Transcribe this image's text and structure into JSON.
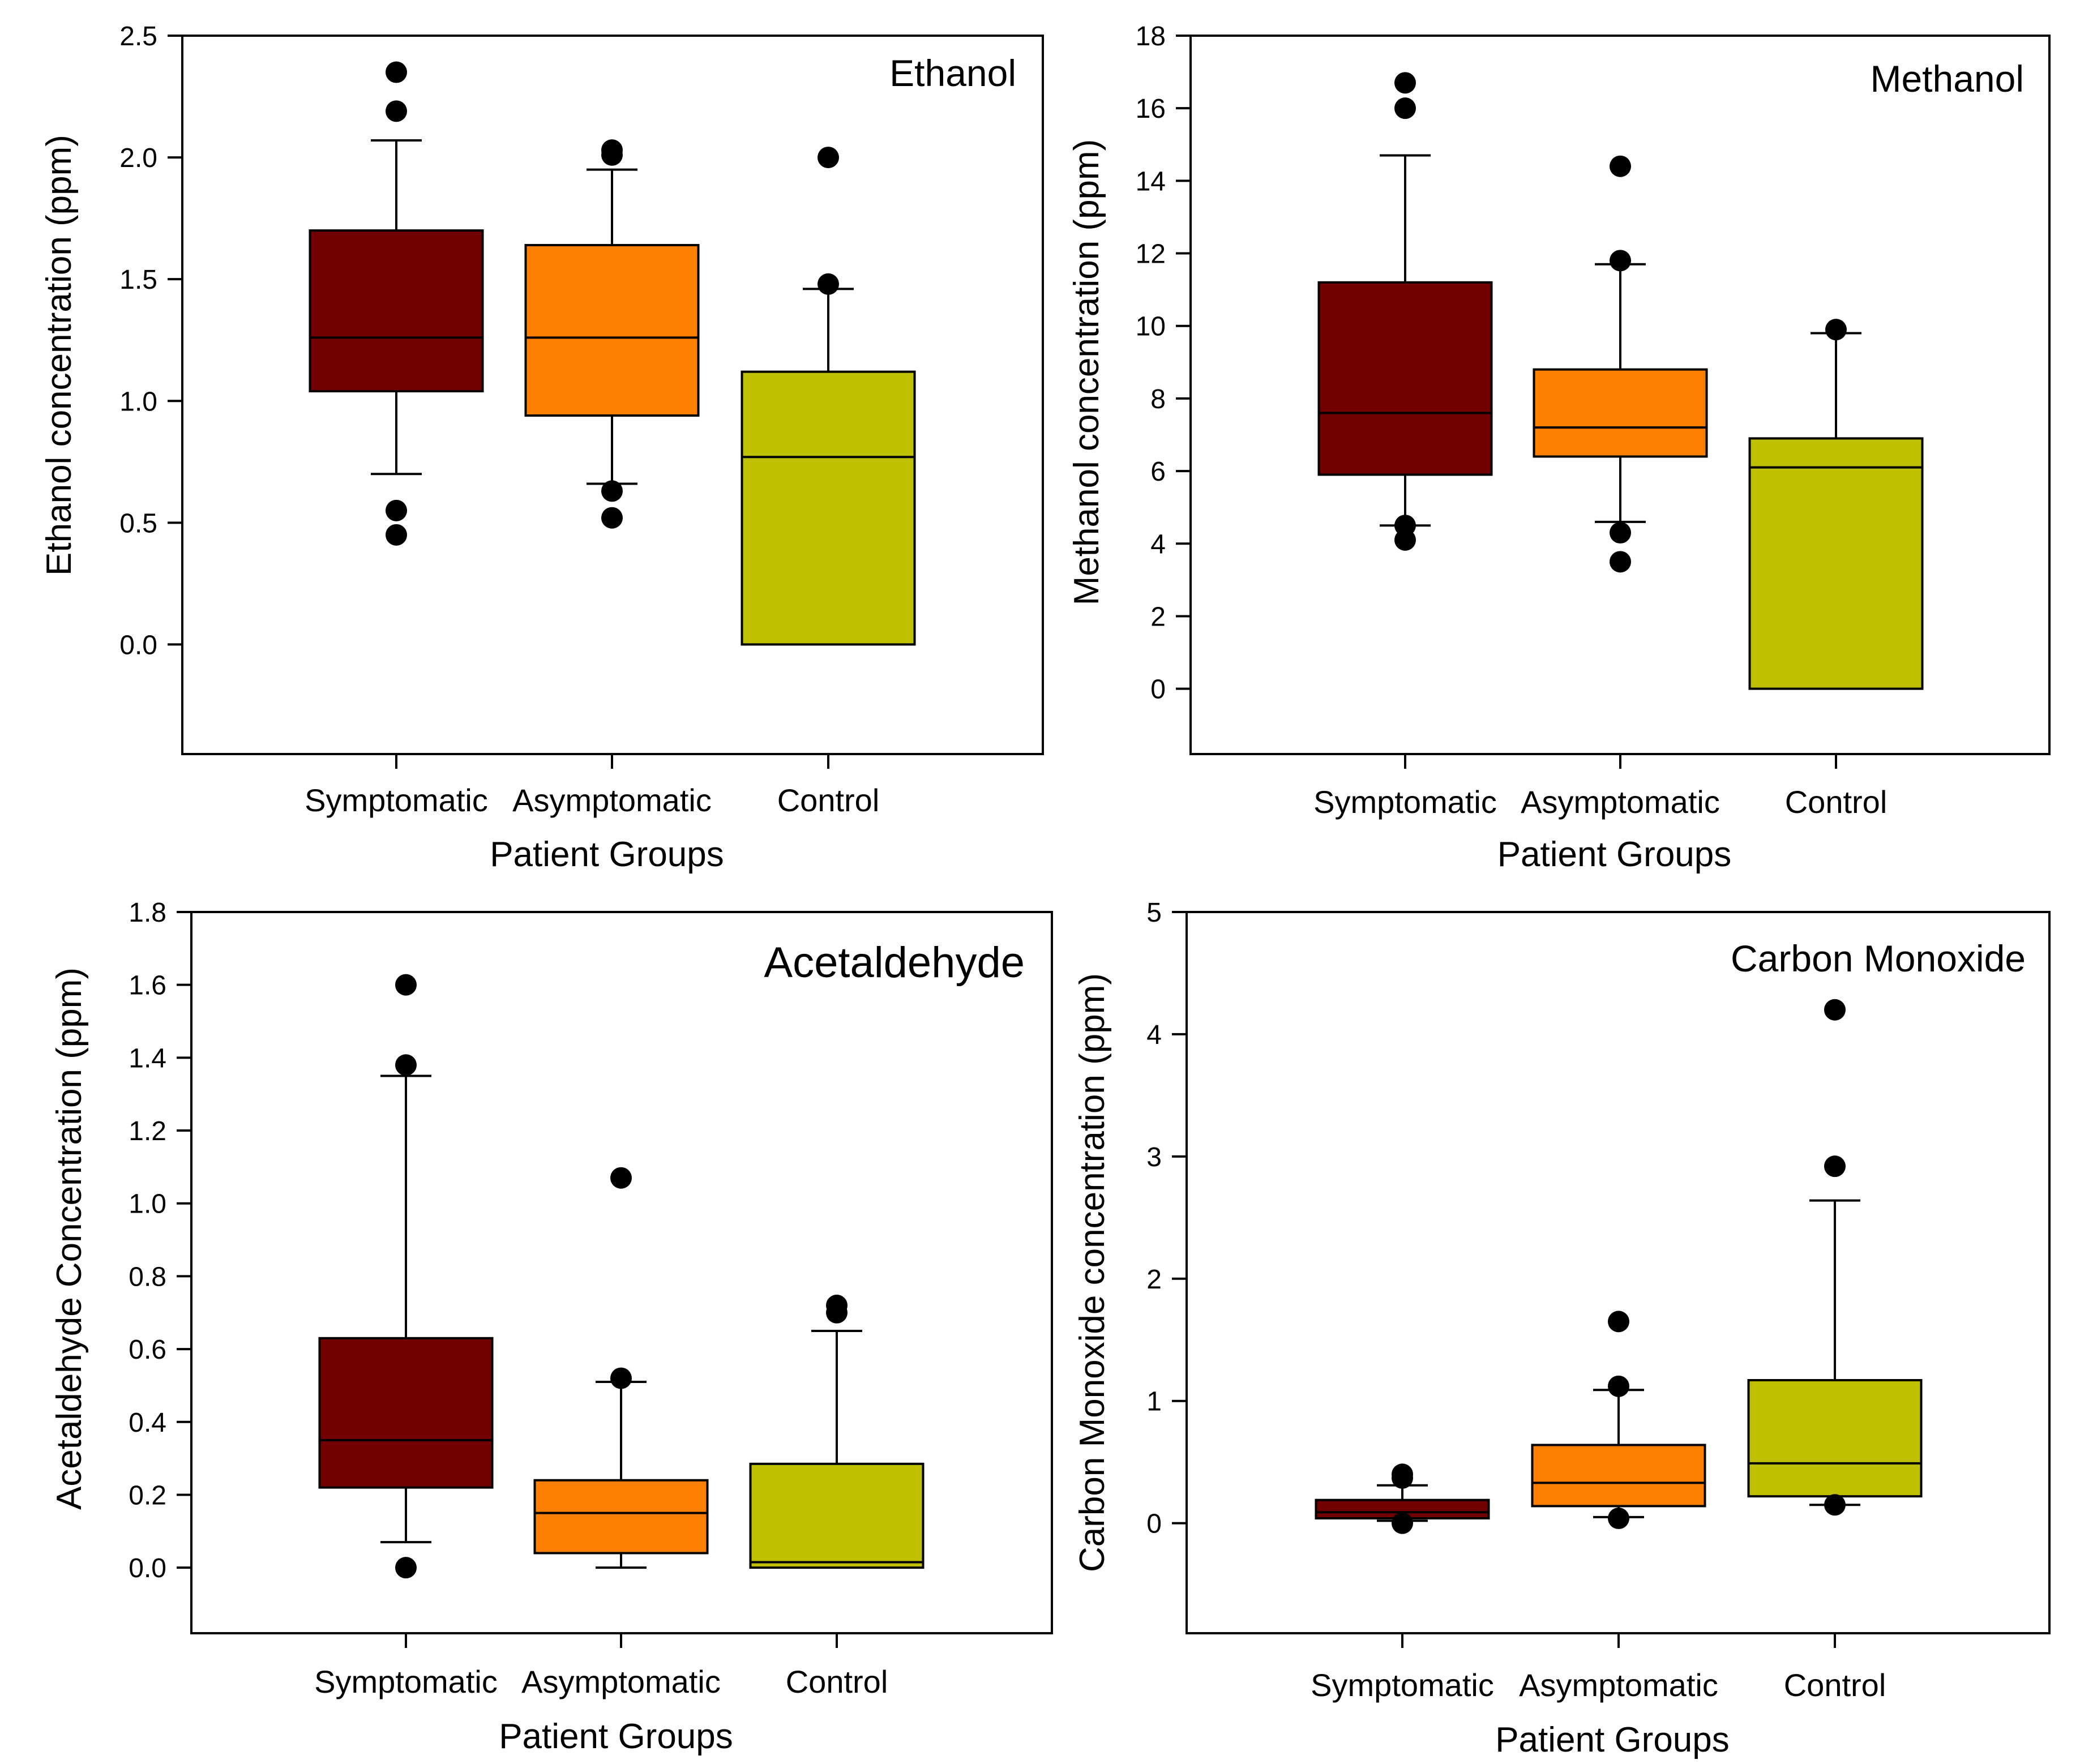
{
  "colors": {
    "symptomatic": "#730000",
    "asymptomatic": "#ff8000",
    "control": "#bfc000"
  },
  "chart_data": [
    {
      "type": "box",
      "title": "Ethanol",
      "xlabel": "Patient Groups",
      "ylabel": "Ethanol concentration (ppm)",
      "ylim": [
        -0.45,
        2.5
      ],
      "yticks": [
        0.0,
        0.5,
        1.0,
        1.5,
        2.0,
        2.5
      ],
      "ytick_labels": [
        "0.0",
        "0.5",
        "1.0",
        "1.5",
        "2.0",
        "2.5"
      ],
      "categories": [
        "Symptomatic",
        "Asymptomatic",
        "Control"
      ],
      "boxes": [
        {
          "category": "Symptomatic",
          "whisker_low": 0.7,
          "q1": 1.04,
          "median": 1.26,
          "q3": 1.7,
          "whisker_high": 2.07,
          "outliers": [
            2.35,
            2.19,
            0.55,
            0.45
          ]
        },
        {
          "category": "Asymptomatic",
          "whisker_low": 0.66,
          "q1": 0.94,
          "median": 1.26,
          "q3": 1.64,
          "whisker_high": 1.95,
          "outliers": [
            2.03,
            2.01,
            0.63,
            0.52
          ]
        },
        {
          "category": "Control",
          "whisker_low": 0.0,
          "q1": 0.0,
          "median": 0.77,
          "q3": 1.12,
          "whisker_high": 1.46,
          "outliers": [
            2.0,
            1.48
          ]
        }
      ]
    },
    {
      "type": "box",
      "title": "Methanol",
      "xlabel": "Patient Groups",
      "ylabel": "Methanol concentration (ppm)",
      "ylim": [
        -1.8,
        18
      ],
      "yticks": [
        0,
        2,
        4,
        6,
        8,
        10,
        12,
        14,
        16,
        18
      ],
      "ytick_labels": [
        "0",
        "2",
        "4",
        "6",
        "8",
        "10",
        "12",
        "14",
        "16",
        "18"
      ],
      "categories": [
        "Symptomatic",
        "Asymptomatic",
        "Control"
      ],
      "boxes": [
        {
          "category": "Symptomatic",
          "whisker_low": 4.5,
          "q1": 5.9,
          "median": 7.6,
          "q3": 11.2,
          "whisker_high": 14.7,
          "outliers": [
            16.7,
            16.0,
            4.5,
            4.1
          ]
        },
        {
          "category": "Asymptomatic",
          "whisker_low": 4.6,
          "q1": 6.4,
          "median": 7.2,
          "q3": 8.8,
          "whisker_high": 11.7,
          "outliers": [
            14.4,
            11.8,
            4.3,
            3.5
          ]
        },
        {
          "category": "Control",
          "whisker_low": 0,
          "q1": 0,
          "median": 6.1,
          "q3": 6.9,
          "whisker_high": 9.8,
          "outliers": [
            9.9
          ]
        }
      ]
    },
    {
      "type": "box",
      "title": "Acetaldehyde",
      "xlabel": "Patient Groups",
      "ylabel": "Acetaldehyde Concentration (ppm)",
      "ylim": [
        -0.18,
        1.8
      ],
      "yticks": [
        0.0,
        0.2,
        0.4,
        0.6,
        0.8,
        1.0,
        1.2,
        1.4,
        1.6,
        1.8
      ],
      "ytick_labels": [
        "0.0",
        "0.2",
        "0.4",
        "0.6",
        "0.8",
        "1.0",
        "1.2",
        "1.4",
        "1.6",
        "1.8"
      ],
      "categories": [
        "Symptomatic",
        "Asymptomatic",
        "Control"
      ],
      "boxes": [
        {
          "category": "Symptomatic",
          "whisker_low": 0.07,
          "q1": 0.22,
          "median": 0.35,
          "q3": 0.63,
          "whisker_high": 1.35,
          "outliers": [
            1.6,
            1.38,
            0.0
          ]
        },
        {
          "category": "Asymptomatic",
          "whisker_low": 0.0,
          "q1": 0.04,
          "median": 0.15,
          "q3": 0.24,
          "whisker_high": 0.51,
          "outliers": [
            1.07,
            0.52
          ]
        },
        {
          "category": "Control",
          "whisker_low": 0.0,
          "q1": 0.0,
          "median": 0.015,
          "q3": 0.285,
          "whisker_high": 0.65,
          "outliers": [
            0.72,
            0.7
          ]
        }
      ]
    },
    {
      "type": "box",
      "title": "Carbon Monoxide",
      "xlabel": "Patient Groups",
      "ylabel": "Carbon Monoxide concentration (ppm)",
      "ylim": [
        -0.9,
        5
      ],
      "yticks": [
        0,
        1,
        2,
        3,
        4,
        5
      ],
      "ytick_labels": [
        "0",
        "1",
        "2",
        "3",
        "4",
        "5"
      ],
      "categories": [
        "Symptomatic",
        "Asymptomatic",
        "Control"
      ],
      "boxes": [
        {
          "category": "Symptomatic",
          "whisker_low": 0.02,
          "q1": 0.04,
          "median": 0.09,
          "q3": 0.19,
          "whisker_high": 0.31,
          "outliers": [
            0.4,
            0.37,
            0.0
          ]
        },
        {
          "category": "Asymptomatic",
          "whisker_low": 0.05,
          "q1": 0.14,
          "median": 0.33,
          "q3": 0.64,
          "whisker_high": 1.09,
          "outliers": [
            1.65,
            1.12,
            0.04
          ]
        },
        {
          "category": "Control",
          "whisker_low": 0.15,
          "q1": 0.22,
          "median": 0.49,
          "q3": 1.17,
          "whisker_high": 2.64,
          "outliers": [
            4.2,
            2.92,
            0.15
          ]
        }
      ]
    }
  ]
}
